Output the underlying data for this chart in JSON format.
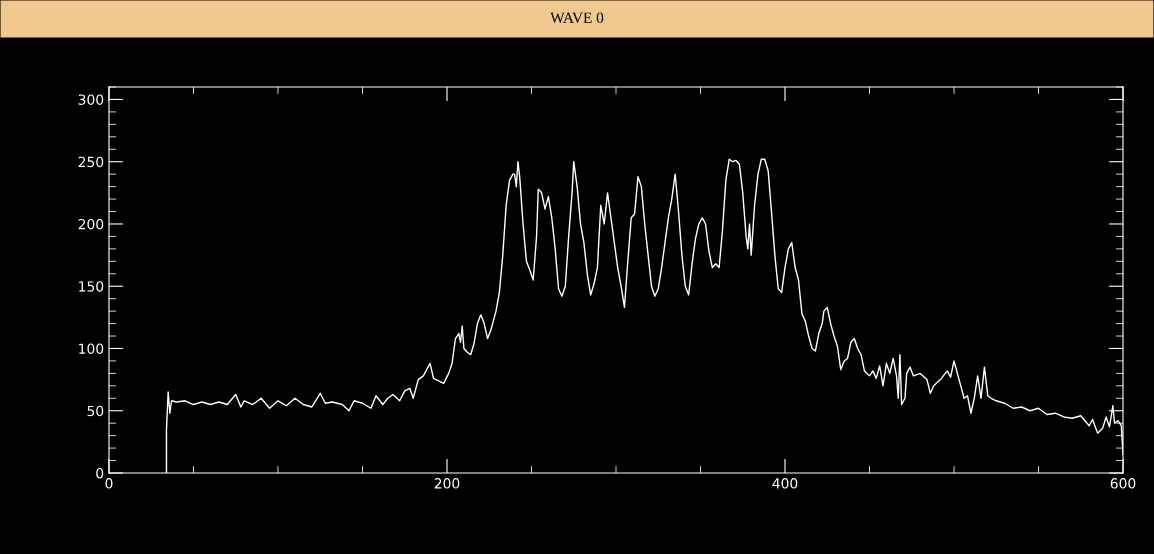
{
  "chart_data": {
    "type": "line",
    "title": "WAVE 0",
    "x": [
      34,
      34,
      35,
      36,
      37,
      40,
      45,
      50,
      55,
      60,
      65,
      70,
      75,
      78,
      80,
      85,
      90,
      95,
      100,
      105,
      110,
      115,
      120,
      125,
      128,
      132,
      138,
      142,
      145,
      150,
      155,
      158,
      162,
      165,
      168,
      172,
      175,
      178,
      180,
      183,
      186,
      190,
      192,
      195,
      198,
      201,
      203,
      205,
      207,
      208,
      209,
      210,
      212,
      214,
      216,
      218,
      220,
      222,
      224,
      226,
      229,
      231,
      233,
      235,
      237,
      239,
      240,
      241,
      242,
      243,
      245,
      247,
      249,
      251,
      253,
      254,
      256,
      258,
      260,
      262,
      264,
      266,
      268,
      270,
      272,
      274,
      275,
      277,
      279,
      281,
      283,
      285,
      287,
      289,
      291,
      293,
      295,
      297,
      299,
      301,
      303,
      305,
      307,
      309,
      311,
      313,
      315,
      317,
      319,
      321,
      323,
      325,
      327,
      329,
      331,
      333,
      335,
      337,
      339,
      341,
      343,
      345,
      347,
      349,
      351,
      353,
      355,
      357,
      359,
      361,
      363,
      365,
      367,
      369,
      371,
      373,
      375,
      377,
      378,
      379,
      380,
      382,
      384,
      386,
      388,
      390,
      392,
      394,
      396,
      398,
      400,
      402,
      404,
      406,
      408,
      410,
      412,
      414,
      416,
      418,
      420,
      422,
      423,
      425,
      427,
      429,
      431,
      433,
      435,
      437,
      439,
      441,
      443,
      445,
      447,
      450,
      452,
      454,
      456,
      458,
      460,
      462,
      464,
      466,
      467,
      468,
      469,
      471,
      472,
      474,
      476,
      480,
      484,
      486,
      488,
      492,
      496,
      498,
      500,
      502,
      504,
      506,
      508,
      510,
      512,
      514,
      516,
      518,
      520,
      522,
      525,
      530,
      535,
      540,
      545,
      550,
      555,
      560,
      565,
      570,
      575,
      580,
      582,
      585,
      588,
      590,
      592,
      594,
      595,
      597,
      599,
      600
    ],
    "series": [
      {
        "color": "#ffffff",
        "values": [
          0,
          35,
          65,
          48,
          58,
          57,
          58,
          55,
          57,
          55,
          57,
          55,
          63,
          53,
          58,
          55,
          60,
          52,
          58,
          54,
          60,
          55,
          53,
          64,
          56,
          57,
          55,
          50,
          58,
          56,
          52,
          62,
          55,
          60,
          63,
          58,
          66,
          68,
          60,
          75,
          78,
          88,
          76,
          74,
          72,
          80,
          88,
          108,
          112,
          105,
          118,
          100,
          97,
          95,
          104,
          120,
          127,
          120,
          108,
          115,
          130,
          145,
          175,
          215,
          235,
          240,
          240,
          230,
          250,
          238,
          200,
          170,
          163,
          155,
          190,
          228,
          225,
          212,
          222,
          205,
          180,
          148,
          142,
          150,
          190,
          225,
          250,
          230,
          200,
          185,
          160,
          143,
          152,
          165,
          215,
          200,
          225,
          205,
          185,
          165,
          150,
          133,
          170,
          205,
          208,
          238,
          230,
          200,
          175,
          150,
          142,
          148,
          165,
          185,
          205,
          220,
          240,
          210,
          175,
          150,
          143,
          168,
          188,
          200,
          205,
          200,
          178,
          165,
          168,
          165,
          195,
          235,
          252,
          250,
          251,
          248,
          225,
          190,
          180,
          200,
          175,
          215,
          240,
          252,
          252,
          243,
          210,
          175,
          148,
          145,
          165,
          180,
          185,
          165,
          155,
          128,
          122,
          110,
          100,
          98,
          112,
          120,
          130,
          133,
          120,
          110,
          102,
          83,
          90,
          92,
          105,
          108,
          100,
          95,
          82,
          78,
          82,
          76,
          86,
          70,
          88,
          80,
          92,
          78,
          60,
          95,
          55,
          60,
          80,
          85,
          78,
          80,
          75,
          64,
          70,
          75,
          82,
          77,
          90,
          80,
          70,
          60,
          62,
          48,
          60,
          78,
          60,
          85,
          62,
          60,
          58,
          56,
          52,
          53,
          50,
          52,
          47,
          48,
          45,
          44,
          46,
          38,
          43,
          32,
          36,
          45,
          37,
          54,
          40,
          42,
          38,
          15
        ]
      }
    ],
    "xlim": [
      0,
      600
    ],
    "ylim": [
      0,
      310
    ],
    "xticks": [
      0,
      200,
      400,
      600
    ],
    "yticks": [
      0,
      50,
      100,
      150,
      200,
      250,
      300
    ],
    "grid": false,
    "legend": false,
    "marker": "none",
    "line_style": "solid"
  }
}
